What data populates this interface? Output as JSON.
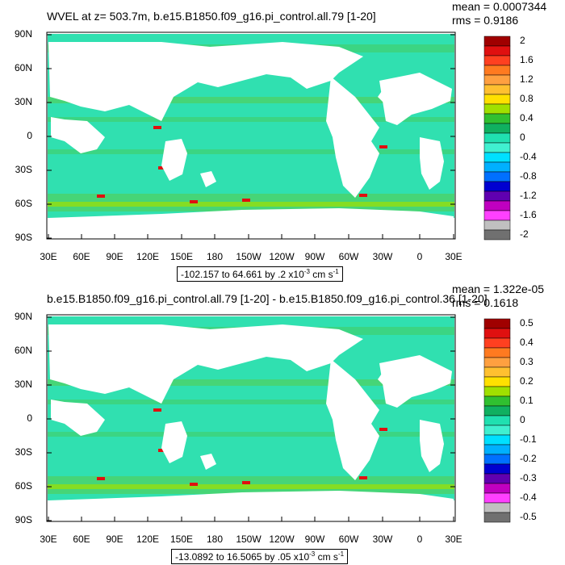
{
  "panels": [
    {
      "title": "WVEL at z= 503.7m, b.e15.B1850.f09_g16.pi_control.all.79 [1-20]",
      "mean": "mean = 0.0007344",
      "rms": "rms = 0.9186",
      "range_prefix": "-102.157 to 64.661 by .2 x10",
      "range_exp": "-3",
      "range_units": " cm s",
      "range_units_exp": "-1",
      "colorbar_labels": [
        "2",
        "1.6",
        "1.2",
        "0.8",
        "0.4",
        "0",
        "-0.4",
        "-0.8",
        "-1.2",
        "-1.6",
        "-2"
      ]
    },
    {
      "title": "b.e15.B1850.f09_g16.pi_control.all.79 [1-20] - b.e15.B1850.f09_g16.pi_control.36 [1-20]",
      "mean": "mean = 1.322e-05",
      "rms": "rms = 0.1618",
      "range_prefix": "-13.0892 to 16.5065 by .05 x10",
      "range_exp": "-3",
      "range_units": " cm s",
      "range_units_exp": "-1",
      "colorbar_labels": [
        "0.5",
        "0.4",
        "0.3",
        "0.2",
        "0.1",
        "0",
        "-0.1",
        "-0.2",
        "-0.3",
        "-0.4",
        "-0.5"
      ]
    }
  ],
  "y_ticks": [
    "90N",
    "60N",
    "30N",
    "0",
    "30S",
    "60S",
    "90S"
  ],
  "x_ticks": [
    "30E",
    "60E",
    "90E",
    "120E",
    "150E",
    "180",
    "150W",
    "120W",
    "90W",
    "60W",
    "30W",
    "0",
    "30E"
  ],
  "colorbar_colors": [
    "#a00000",
    "#e01010",
    "#ff4020",
    "#ff7a20",
    "#ffa040",
    "#ffc030",
    "#ffe000",
    "#a0e000",
    "#30c030",
    "#10b060",
    "#20e0b0",
    "#40f0d0",
    "#00e0ff",
    "#00b0ff",
    "#0070ff",
    "#0000d0",
    "#6000b0",
    "#c000c0",
    "#ff40ff",
    "#c0c0c0",
    "#707070"
  ]
}
